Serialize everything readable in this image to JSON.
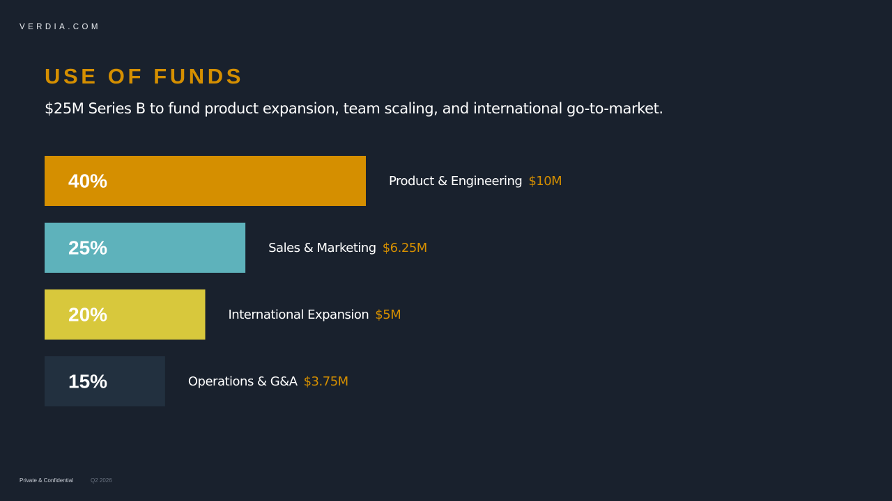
{
  "brand": "VERDIA.COM",
  "header": {
    "title": "USE OF FUNDS",
    "subtitle": "$25M Series B to fund product expansion, team scaling, and international go-to-market."
  },
  "footer": {
    "left": "Private & Confidential",
    "right": "Q2 2026"
  },
  "colors": {
    "background": "#19212d",
    "accent": "#d58f00",
    "amount": "#d58f00",
    "label": "#ffffff"
  },
  "chart_data": {
    "type": "bar",
    "orientation": "horizontal",
    "categories": [
      "Product & Engineering",
      "Sales & Marketing",
      "International Expansion",
      "Operations & G&A"
    ],
    "values": [
      40,
      25,
      20,
      15
    ],
    "value_labels": [
      "40%",
      "25%",
      "20%",
      "15%"
    ],
    "amounts": [
      "$10M",
      "$6.25M",
      "$5M",
      "$3.75M"
    ],
    "colors": [
      "#d58f00",
      "#5eb2bb",
      "#d8c83c",
      "#22303f"
    ],
    "xlim": [
      0,
      100
    ],
    "title": "",
    "xlabel": "",
    "ylabel": "",
    "grid": false,
    "legend": "none"
  }
}
